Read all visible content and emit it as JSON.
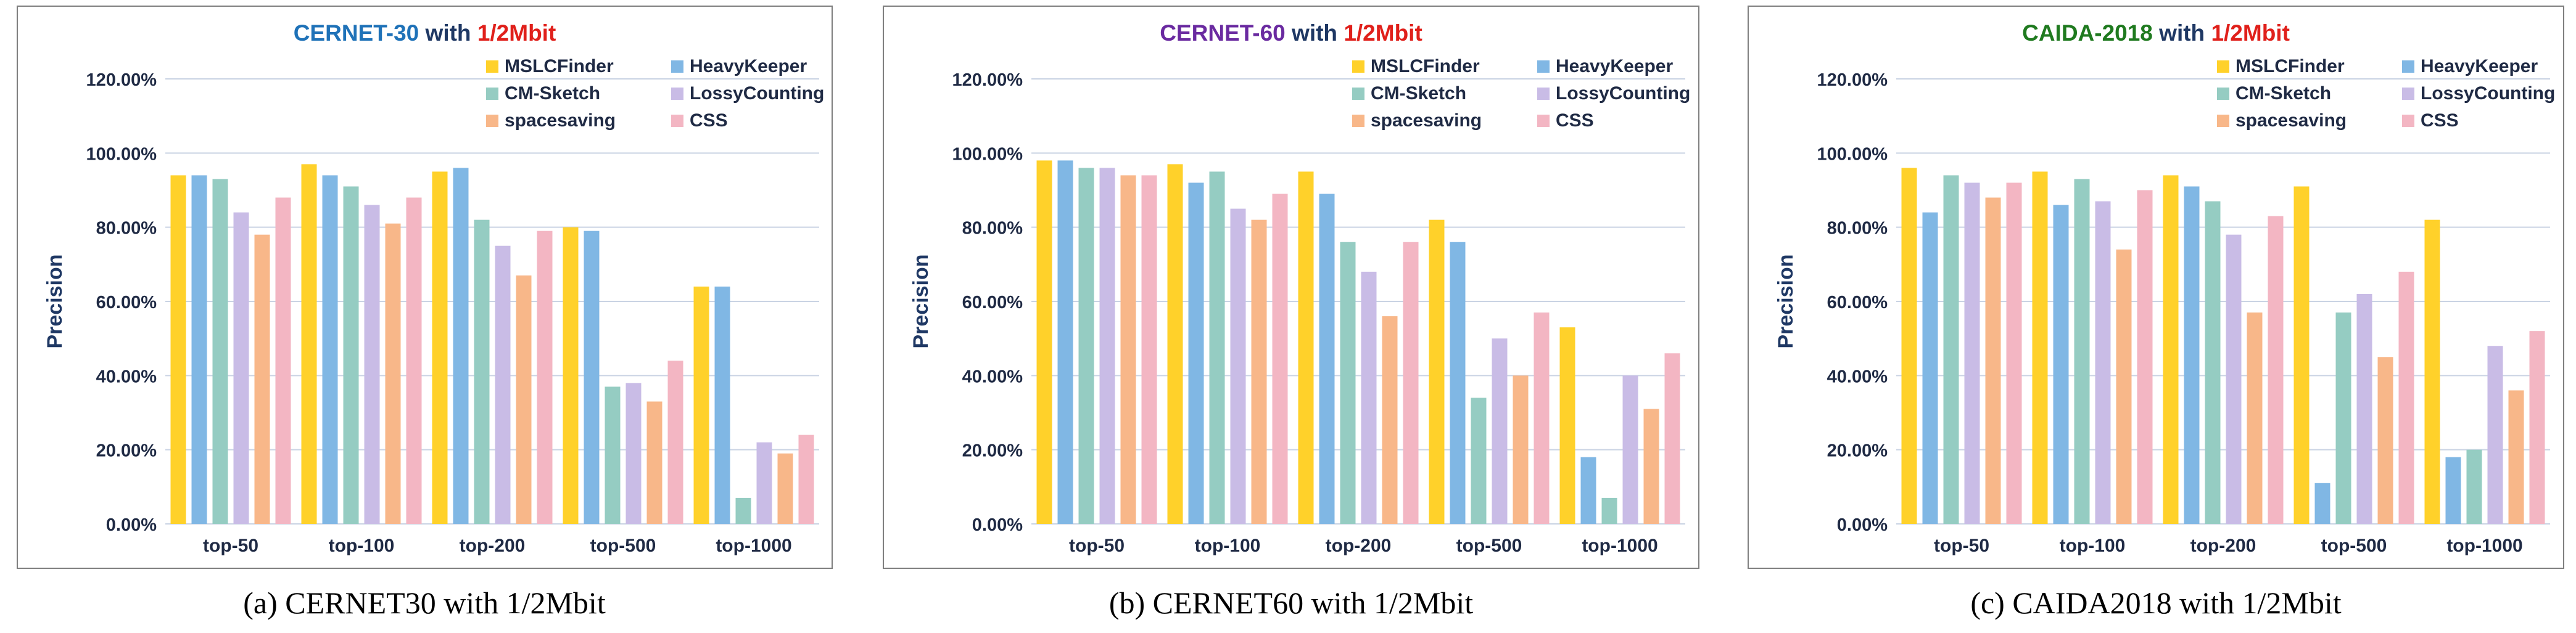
{
  "colors": {
    "grid": "#c9d3e3",
    "axis_text": "#1f2a44",
    "frame": "#7f7f7f",
    "series": {
      "MSLCFinder": "#ffd12a",
      "HeavyKeeper": "#80b7e4",
      "CM-Sketch": "#95ccc2",
      "LossyCounting": "#c9bce6",
      "spacesaving": "#f8b789",
      "CSS": "#f3b6c3"
    }
  },
  "figure_captions": [
    "(a)  CERNET30 with 1/2Mbit",
    "(b)  CERNET60 with 1/2Mbit",
    "(c)  CAIDA2018 with 1/2Mbit"
  ],
  "chart_data": [
    {
      "type": "bar",
      "title_main": "CERNET-30",
      "title_mid": " with ",
      "title_suffix": "1/2Mbit",
      "title_main_color": "#1f72b8",
      "title_suffix_color": "#e0201b",
      "ylabel": "Precision",
      "ylim": [
        0,
        120
      ],
      "yticks": [
        "0.00%",
        "20.00%",
        "40.00%",
        "60.00%",
        "80.00%",
        "100.00%",
        "120.00%"
      ],
      "categories": [
        "top-50",
        "top-100",
        "top-200",
        "top-500",
        "top-1000"
      ],
      "legend_position": "top-right",
      "series": [
        {
          "name": "MSLCFinder",
          "values": [
            94,
            97,
            95,
            80,
            64
          ]
        },
        {
          "name": "HeavyKeeper",
          "values": [
            94,
            94,
            96,
            79,
            64
          ]
        },
        {
          "name": "CM-Sketch",
          "values": [
            93,
            91,
            82,
            37,
            7
          ]
        },
        {
          "name": "LossyCounting",
          "values": [
            84,
            86,
            75,
            38,
            22
          ]
        },
        {
          "name": "spacesaving",
          "values": [
            78,
            81,
            67,
            33,
            19
          ]
        },
        {
          "name": "CSS",
          "values": [
            88,
            88,
            79,
            44,
            24
          ]
        }
      ]
    },
    {
      "type": "bar",
      "title_main": "CERNET-60",
      "title_mid": " with ",
      "title_suffix": "1/2Mbit",
      "title_main_color": "#6a2aa0",
      "title_suffix_color": "#e0201b",
      "ylabel": "Precision",
      "ylim": [
        0,
        120
      ],
      "yticks": [
        "0.00%",
        "20.00%",
        "40.00%",
        "60.00%",
        "80.00%",
        "100.00%",
        "120.00%"
      ],
      "categories": [
        "top-50",
        "top-100",
        "top-200",
        "top-500",
        "top-1000"
      ],
      "legend_position": "top-right",
      "series": [
        {
          "name": "MSLCFinder",
          "values": [
            98,
            97,
            95,
            82,
            53
          ]
        },
        {
          "name": "HeavyKeeper",
          "values": [
            98,
            92,
            89,
            76,
            18
          ]
        },
        {
          "name": "CM-Sketch",
          "values": [
            96,
            95,
            76,
            34,
            7
          ]
        },
        {
          "name": "LossyCounting",
          "values": [
            96,
            85,
            68,
            50,
            40
          ]
        },
        {
          "name": "spacesaving",
          "values": [
            94,
            82,
            56,
            40,
            31
          ]
        },
        {
          "name": "CSS",
          "values": [
            94,
            89,
            76,
            57,
            46
          ]
        }
      ]
    },
    {
      "type": "bar",
      "title_main": "CAIDA-2018",
      "title_mid": " with ",
      "title_suffix": "1/2Mbit",
      "title_main_color": "#1f7a1f",
      "title_suffix_color": "#e0201b",
      "ylabel": "Precision",
      "ylim": [
        0,
        120
      ],
      "yticks": [
        "0.00%",
        "20.00%",
        "40.00%",
        "60.00%",
        "80.00%",
        "100.00%",
        "120.00%"
      ],
      "categories": [
        "top-50",
        "top-100",
        "top-200",
        "top-500",
        "top-1000"
      ],
      "legend_position": "top-right",
      "series": [
        {
          "name": "MSLCFinder",
          "values": [
            96,
            95,
            94,
            91,
            82
          ]
        },
        {
          "name": "HeavyKeeper",
          "values": [
            84,
            86,
            91,
            11,
            18
          ]
        },
        {
          "name": "CM-Sketch",
          "values": [
            94,
            93,
            87,
            57,
            20
          ]
        },
        {
          "name": "LossyCounting",
          "values": [
            92,
            87,
            78,
            62,
            48
          ]
        },
        {
          "name": "spacesaving",
          "values": [
            88,
            74,
            57,
            45,
            36
          ]
        },
        {
          "name": "CSS",
          "values": [
            92,
            90,
            83,
            68,
            52
          ]
        }
      ]
    }
  ]
}
